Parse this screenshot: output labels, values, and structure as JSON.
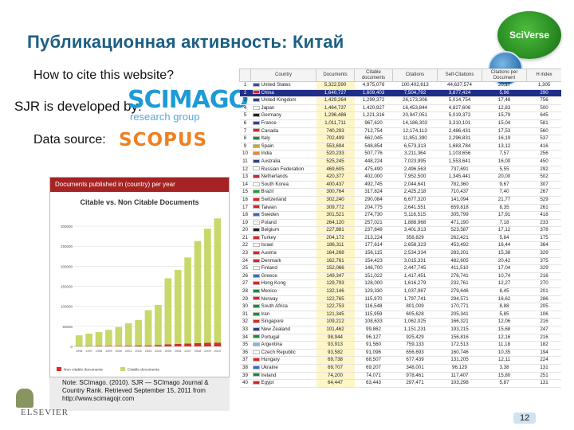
{
  "slide": {
    "title": "Публикационная активность: Китай",
    "badge": "SciVerse",
    "cite_text": "How to cite this website?",
    "sjr_text": "SJR is developed by:",
    "scimago_word": "SCIMAGO",
    "scimago_sub": "research group",
    "data_source_text": "Data source:",
    "scopus_word": "SCOPUS",
    "page_number": "12",
    "elsevier": "ELSEVIER"
  },
  "chart_panel": {
    "header": "Documents published in (country) per year",
    "note": "Note: SCImago. (2010). SJR — SCImago Journal & Country Rank. Retrieved September 15, 2011 from http://www.scimagojr.com"
  },
  "chart_data": {
    "type": "bar",
    "title": "Citable vs. Non Citable Documents",
    "categories": [
      "1996",
      "1997",
      "1998",
      "1999",
      "2000",
      "2001",
      "2002",
      "2003",
      "2004",
      "2005",
      "2006",
      "2007",
      "2008",
      "2009",
      "2010"
    ],
    "series": [
      {
        "name": "Non citable documents",
        "values": [
          600,
          800,
          1000,
          1200,
          1400,
          1700,
          2000,
          2500,
          3500,
          5000,
          6000,
          7000,
          8000,
          9000,
          9500
        ],
        "color": "#d2312a"
      },
      {
        "name": "Citable documents",
        "values": [
          27000,
          31000,
          35000,
          40000,
          47000,
          56000,
          64000,
          88000,
          100000,
          165000,
          185000,
          215000,
          255000,
          285000,
          310000
        ],
        "color": "#c9d86b"
      }
    ],
    "yticks": [
      "0",
      "50000",
      "100000",
      "150000",
      "200000",
      "250000",
      "300000"
    ],
    "ylim": [
      0,
      330000
    ]
  },
  "table": {
    "headers": [
      "Country",
      "Documents",
      "Citable documents",
      "Citations",
      "Self-Citations",
      "Citations per Document",
      "H index"
    ],
    "rows": [
      {
        "rank": "1",
        "country": "United States",
        "docs": "5,322,590",
        "citable": "4,975,078",
        "cites": "100,402,613",
        "self": "44,637,574",
        "cpd": "20,17",
        "h": "1,305",
        "flag": "#3b4f9a"
      },
      {
        "rank": "2",
        "country": "China",
        "docs": "1,640,727",
        "citable": "1,609,403",
        "cites": "7,504,792",
        "self": "3,877,424",
        "cpd": "5,96",
        "h": "290",
        "flag": "#d22",
        "sel": true
      },
      {
        "rank": "3",
        "country": "United Kingdom",
        "docs": "1,429,264",
        "citable": "1,299,372",
        "cites": "26,173,306",
        "self": "5,014,754",
        "cpd": "17,48",
        "h": "756",
        "flag": "#2c3f8f"
      },
      {
        "rank": "4",
        "country": "Japan",
        "docs": "1,464,737",
        "citable": "1,420,927",
        "cites": "16,453,844",
        "self": "4,827,606",
        "cpd": "12,83",
        "h": "500",
        "flag": "#fff"
      },
      {
        "rank": "5",
        "country": "Germany",
        "docs": "1,296,486",
        "citable": "1,221,316",
        "cites": "20,947,051",
        "self": "5,019,372",
        "cpd": "15,79",
        "h": "645",
        "flag": "#222"
      },
      {
        "rank": "6",
        "country": "France",
        "docs": "1,011,711",
        "citable": "967,620",
        "cites": "14,186,303",
        "self": "3,310,101",
        "cpd": "15,04",
        "h": "581",
        "flag": "#2c45a0"
      },
      {
        "rank": "7",
        "country": "Canada",
        "docs": "740,293",
        "citable": "712,754",
        "cites": "12,174,113",
        "self": "2,486,431",
        "cpd": "17,53",
        "h": "560",
        "flag": "#d22"
      },
      {
        "rank": "8",
        "country": "Italy",
        "docs": "702,499",
        "citable": "662,045",
        "cites": "11,851,390",
        "self": "2,296,831",
        "cpd": "16,19",
        "h": "537",
        "flag": "#1a8a3a"
      },
      {
        "rank": "9",
        "country": "Spain",
        "docs": "553,694",
        "citable": "548,854",
        "cites": "6,573,313",
        "self": "1,683,784",
        "cpd": "13,12",
        "h": "416",
        "flag": "#d9a21c"
      },
      {
        "rank": "10",
        "country": "India",
        "docs": "520,233",
        "citable": "507,776",
        "cites": "3,211,364",
        "self": "1,103,656",
        "cpd": "7,57",
        "h": "256",
        "flag": "#e88a2b"
      },
      {
        "rank": "11",
        "country": "Australia",
        "docs": "525,245",
        "citable": "448,224",
        "cites": "7,023,995",
        "self": "1,553,641",
        "cpd": "16,00",
        "h": "450",
        "flag": "#2c3f8f"
      },
      {
        "rank": "12",
        "country": "Russian Federation",
        "docs": "469,605",
        "citable": "475,490",
        "cites": "2,496,563",
        "self": "737,691",
        "cpd": "5,55",
        "h": "292",
        "flag": "#fff"
      },
      {
        "rank": "13",
        "country": "Netherlands",
        "docs": "420,377",
        "citable": "402,000",
        "cites": "7,952,500",
        "self": "1,345,441",
        "cpd": "20,00",
        "h": "502",
        "flag": "#c23"
      },
      {
        "rank": "14",
        "country": "South Korea",
        "docs": "400,437",
        "citable": "492,745",
        "cites": "2,044,641",
        "self": "782,360",
        "cpd": "9,67",
        "h": "307",
        "flag": "#fff"
      },
      {
        "rank": "15",
        "country": "Brazil",
        "docs": "300,764",
        "citable": "317,824",
        "cites": "2,425,218",
        "self": "710,437",
        "cpd": "7,40",
        "h": "267",
        "flag": "#2a9a3a"
      },
      {
        "rank": "16",
        "country": "Switzerland",
        "docs": "302,240",
        "citable": "290,084",
        "cites": "6,677,320",
        "self": "141,094",
        "cpd": "21,77",
        "h": "529",
        "flag": "#d22"
      },
      {
        "rank": "17",
        "country": "Taiwan",
        "docs": "309,772",
        "citable": "204,775",
        "cites": "2,641,551",
        "self": "659,818",
        "cpd": "8,35",
        "h": "261",
        "flag": "#d22"
      },
      {
        "rank": "18",
        "country": "Sweden",
        "docs": "301,521",
        "citable": "274,730",
        "cites": "5,116,515",
        "self": "305,799",
        "cpd": "17,91",
        "h": "418",
        "flag": "#3a6ac8"
      },
      {
        "rank": "19",
        "country": "Poland",
        "docs": "264,120",
        "citable": "257,021",
        "cites": "1,888,968",
        "self": "471,190",
        "cpd": "7,18",
        "h": "233",
        "flag": "#fff"
      },
      {
        "rank": "20",
        "country": "Belgium",
        "docs": "227,881",
        "citable": "237,849",
        "cites": "3,401,913",
        "self": "523,587",
        "cpd": "17,12",
        "h": "378",
        "flag": "#222"
      },
      {
        "rank": "21",
        "country": "Turkey",
        "docs": "204,172",
        "citable": "213,224",
        "cites": "358,829",
        "self": "262,421",
        "cpd": "5,84",
        "h": "175",
        "flag": "#d22"
      },
      {
        "rank": "22",
        "country": "Israel",
        "docs": "186,311",
        "citable": "177,614",
        "cites": "2,658,323",
        "self": "453,492",
        "cpd": "16,44",
        "h": "364",
        "flag": "#fff"
      },
      {
        "rank": "23",
        "country": "Austria",
        "docs": "164,268",
        "citable": "156,115",
        "cites": "2,534,334",
        "self": "283,201",
        "cpd": "15,38",
        "h": "329",
        "flag": "#d22"
      },
      {
        "rank": "24",
        "country": "Denmark",
        "docs": "162,761",
        "citable": "154,423",
        "cites": "3,015,331",
        "self": "482,605",
        "cpd": "20,42",
        "h": "375",
        "flag": "#d22"
      },
      {
        "rank": "25",
        "country": "Finland",
        "docs": "152,066",
        "citable": "146,700",
        "cites": "2,447,745",
        "self": "411,510",
        "cpd": "17,04",
        "h": "329",
        "flag": "#fff"
      },
      {
        "rank": "26",
        "country": "Greece",
        "docs": "149,347",
        "citable": "151,022",
        "cites": "1,417,451",
        "self": "276,741",
        "cpd": "10,74",
        "h": "216",
        "flag": "#3a6ac8"
      },
      {
        "rank": "27",
        "country": "Hong Kong",
        "docs": "129,793",
        "citable": "128,000",
        "cites": "1,616,279",
        "self": "232,761",
        "cpd": "12,27",
        "h": "270",
        "flag": "#d22"
      },
      {
        "rank": "28",
        "country": "Mexico",
        "docs": "132,146",
        "citable": "129,330",
        "cites": "1,037,987",
        "self": "279,646",
        "cpd": "8,45",
        "h": "201",
        "flag": "#1a8a3a"
      },
      {
        "rank": "29",
        "country": "Norway",
        "docs": "122,765",
        "citable": "115,970",
        "cites": "1,797,741",
        "self": "294,571",
        "cpd": "16,62",
        "h": "286",
        "flag": "#d22"
      },
      {
        "rank": "30",
        "country": "South Africa",
        "docs": "122,753",
        "citable": "116,548",
        "cites": "801,009",
        "self": "170,771",
        "cpd": "8,88",
        "h": "205",
        "flag": "#1a8a3a"
      },
      {
        "rank": "31",
        "country": "Iran",
        "docs": "121,345",
        "citable": "115,959",
        "cites": "605,628",
        "self": "205,341",
        "cpd": "5,85",
        "h": "106",
        "flag": "#1a8a3a"
      },
      {
        "rank": "32",
        "country": "Singapore",
        "docs": "109,212",
        "citable": "108,633",
        "cites": "1,062,025",
        "self": "166,321",
        "cpd": "12,06",
        "h": "216",
        "flag": "#d22"
      },
      {
        "rank": "33",
        "country": "New Zealand",
        "docs": "101,462",
        "citable": "99,862",
        "cites": "1,151,231",
        "self": "193,215",
        "cpd": "15,68",
        "h": "247",
        "flag": "#2c3f8f"
      },
      {
        "rank": "34",
        "country": "Portugal",
        "docs": "98,944",
        "citable": "96,127",
        "cites": "925,429",
        "self": "156,816",
        "cpd": "12,16",
        "h": "216",
        "flag": "#1a8a3a"
      },
      {
        "rank": "35",
        "country": "Argentina",
        "docs": "93,913",
        "citable": "91,560",
        "cites": "759,133",
        "self": "172,513",
        "cpd": "11,18",
        "h": "182",
        "flag": "#7ab8e6"
      },
      {
        "rank": "36",
        "country": "Czech Republic",
        "docs": "93,582",
        "citable": "91,096",
        "cites": "656,693",
        "self": "160,746",
        "cpd": "10,35",
        "h": "194",
        "flag": "#fff"
      },
      {
        "rank": "37",
        "country": "Hungary",
        "docs": "69,738",
        "citable": "68,507",
        "cites": "677,439",
        "self": "131,205",
        "cpd": "12,11",
        "h": "224",
        "flag": "#d22"
      },
      {
        "rank": "38",
        "country": "Ukraine",
        "docs": "69,707",
        "citable": "69,207",
        "cites": "348,001",
        "self": "96,129",
        "cpd": "3,38",
        "h": "131",
        "flag": "#3a6ac8"
      },
      {
        "rank": "39",
        "country": "Ireland",
        "docs": "74,200",
        "citable": "74,071",
        "cites": "978,461",
        "self": "117,407",
        "cpd": "15,80",
        "h": "251",
        "flag": "#1a8a3a"
      },
      {
        "rank": "40",
        "country": "Egypt",
        "docs": "64,447",
        "citable": "63,443",
        "cites": "297,471",
        "self": "103,298",
        "cpd": "5,87",
        "h": "131",
        "flag": "#d22"
      }
    ]
  }
}
